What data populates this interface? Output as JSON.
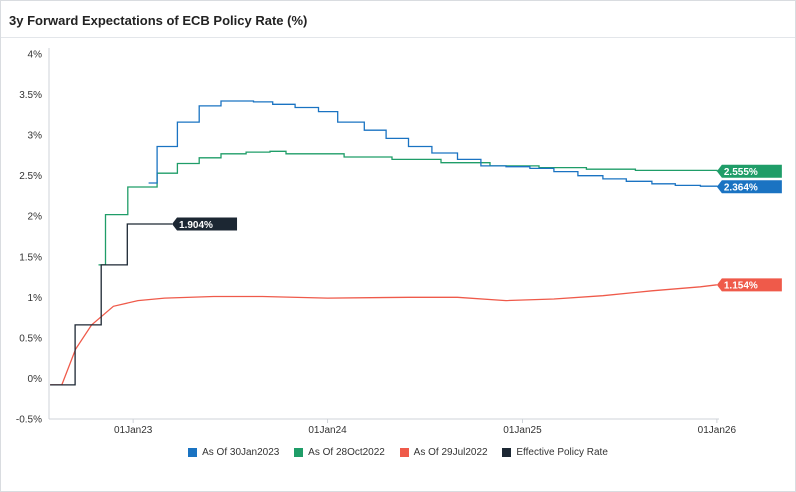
{
  "header": {
    "title": "3y Forward Expectations of ECB Policy Rate (%)"
  },
  "legend": {
    "items": [
      {
        "label": "As Of 30Jan2023",
        "color": "#1a73c2"
      },
      {
        "label": "As Of 28Oct2022",
        "color": "#1f9d68"
      },
      {
        "label": "As Of 29Jul2022",
        "color": "#ef5a4a"
      },
      {
        "label": "Effective Policy Rate",
        "color": "#1c2733"
      }
    ]
  },
  "chart_data": {
    "type": "line",
    "title": "3y Forward Expectations of ECB Policy Rate (%)",
    "xlabel": "",
    "ylabel": "",
    "ylim": [
      -0.5,
      4.0
    ],
    "xlim": [
      "2022-07-27",
      "2026-01-05"
    ],
    "y_ticks": [
      "-0.5%",
      "0%",
      "0.5%",
      "1%",
      "1.5%",
      "2%",
      "2.5%",
      "3%",
      "3.5%",
      "4%"
    ],
    "x_ticks": [
      {
        "date": "2023-01-01",
        "label": "01Jan23"
      },
      {
        "date": "2024-01-01",
        "label": "01Jan24"
      },
      {
        "date": "2025-01-01",
        "label": "01Jan25"
      },
      {
        "date": "2026-01-01",
        "label": "01Jan26"
      }
    ],
    "grid": false,
    "legend_position": "bottom",
    "series": [
      {
        "name": "As Of 30Jan2023",
        "color": "#1a73c2",
        "step": true,
        "end_label": "2.364%",
        "points": [
          [
            "2023-01-30",
            2.41
          ],
          [
            "2023-02-15",
            2.86
          ],
          [
            "2023-03-25",
            3.16
          ],
          [
            "2023-05-05",
            3.36
          ],
          [
            "2023-06-15",
            3.42
          ],
          [
            "2023-08-15",
            3.41
          ],
          [
            "2023-09-20",
            3.38
          ],
          [
            "2023-11-01",
            3.34
          ],
          [
            "2023-12-15",
            3.29
          ],
          [
            "2024-01-20",
            3.16
          ],
          [
            "2024-03-10",
            3.06
          ],
          [
            "2024-04-20",
            2.96
          ],
          [
            "2024-06-01",
            2.86
          ],
          [
            "2024-07-15",
            2.78
          ],
          [
            "2024-09-01",
            2.7
          ],
          [
            "2024-10-15",
            2.62
          ],
          [
            "2024-12-01",
            2.61
          ],
          [
            "2025-01-15",
            2.59
          ],
          [
            "2025-03-01",
            2.55
          ],
          [
            "2025-04-15",
            2.5
          ],
          [
            "2025-06-01",
            2.46
          ],
          [
            "2025-07-15",
            2.43
          ],
          [
            "2025-09-01",
            2.4
          ],
          [
            "2025-10-15",
            2.38
          ],
          [
            "2025-12-01",
            2.37
          ],
          [
            "2026-01-01",
            2.364
          ]
        ]
      },
      {
        "name": "As Of 28Oct2022",
        "color": "#1f9d68",
        "step": true,
        "end_label": "2.555%",
        "points": [
          [
            "2022-10-28",
            1.4
          ],
          [
            "2022-11-10",
            2.02
          ],
          [
            "2022-12-22",
            2.36
          ],
          [
            "2023-02-15",
            2.53
          ],
          [
            "2023-03-25",
            2.65
          ],
          [
            "2023-05-05",
            2.72
          ],
          [
            "2023-06-15",
            2.77
          ],
          [
            "2023-08-01",
            2.79
          ],
          [
            "2023-09-15",
            2.8
          ],
          [
            "2023-10-15",
            2.77
          ],
          [
            "2023-12-01",
            2.77
          ],
          [
            "2024-02-01",
            2.73
          ],
          [
            "2024-05-01",
            2.7
          ],
          [
            "2024-08-01",
            2.66
          ],
          [
            "2024-11-01",
            2.62
          ],
          [
            "2025-02-01",
            2.6
          ],
          [
            "2025-05-01",
            2.58
          ],
          [
            "2025-08-01",
            2.565
          ],
          [
            "2026-01-01",
            2.555
          ]
        ]
      },
      {
        "name": "As Of 29Jul2022",
        "color": "#ef5a4a",
        "step": false,
        "end_label": "1.154%",
        "points": [
          [
            "2022-07-29",
            -0.08
          ],
          [
            "2022-08-20",
            -0.08
          ],
          [
            "2022-09-15",
            0.36
          ],
          [
            "2022-10-15",
            0.66
          ],
          [
            "2022-11-25",
            0.89
          ],
          [
            "2023-01-10",
            0.96
          ],
          [
            "2023-03-01",
            0.99
          ],
          [
            "2023-06-01",
            1.01
          ],
          [
            "2023-09-01",
            1.01
          ],
          [
            "2024-01-01",
            0.99
          ],
          [
            "2024-06-01",
            1.0
          ],
          [
            "2024-09-01",
            1.0
          ],
          [
            "2024-12-01",
            0.96
          ],
          [
            "2025-03-01",
            0.98
          ],
          [
            "2025-06-01",
            1.02
          ],
          [
            "2025-09-01",
            1.08
          ],
          [
            "2025-12-01",
            1.13
          ],
          [
            "2026-01-01",
            1.154
          ]
        ]
      },
      {
        "name": "Effective Policy Rate",
        "color": "#1c2733",
        "step": true,
        "end_label": "1.904%",
        "points": [
          [
            "2022-07-29",
            -0.08
          ],
          [
            "2022-09-14",
            0.66
          ],
          [
            "2022-11-02",
            1.4
          ],
          [
            "2022-12-21",
            1.904
          ],
          [
            "2023-03-15",
            1.904
          ]
        ]
      }
    ]
  }
}
